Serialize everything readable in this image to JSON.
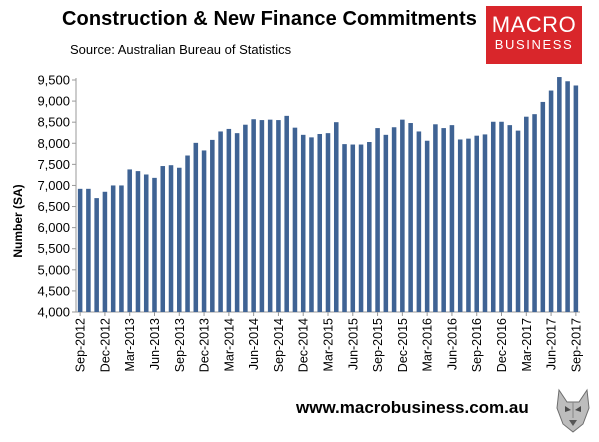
{
  "header": {
    "title": "Construction & New Finance Commitments",
    "subtitle": "Source: Australian Bureau of Statistics"
  },
  "logo": {
    "line1": "MACRO",
    "line2": "BUSINESS"
  },
  "footer": {
    "url": "www.macrobusiness.com.au",
    "wolf_icon": "wolf-logo-icon"
  },
  "colors": {
    "bar": "#3f6394",
    "brand": "#d9262b"
  },
  "chart_data": {
    "type": "bar",
    "title": "Construction & New Finance Commitments",
    "xlabel": "",
    "ylabel": "Number (SA)",
    "ylim": [
      4000,
      9500
    ],
    "yticks": [
      4000,
      4500,
      5000,
      5500,
      6000,
      6500,
      7000,
      7500,
      8000,
      8500,
      9000,
      9500
    ],
    "ytick_labels": [
      "4,000",
      "4,500",
      "5,000",
      "5,500",
      "6,000",
      "6,500",
      "7,000",
      "7,500",
      "8,000",
      "8,500",
      "9,000",
      "9,500"
    ],
    "grid": false,
    "categories": [
      "Sep-2012",
      "Oct-2012",
      "Nov-2012",
      "Dec-2012",
      "Jan-2013",
      "Feb-2013",
      "Mar-2013",
      "Apr-2013",
      "May-2013",
      "Jun-2013",
      "Jul-2013",
      "Aug-2013",
      "Sep-2013",
      "Oct-2013",
      "Nov-2013",
      "Dec-2013",
      "Jan-2014",
      "Feb-2014",
      "Mar-2014",
      "Apr-2014",
      "May-2014",
      "Jun-2014",
      "Jul-2014",
      "Aug-2014",
      "Sep-2014",
      "Oct-2014",
      "Nov-2014",
      "Dec-2014",
      "Jan-2015",
      "Feb-2015",
      "Mar-2015",
      "Apr-2015",
      "May-2015",
      "Jun-2015",
      "Jul-2015",
      "Aug-2015",
      "Sep-2015",
      "Oct-2015",
      "Nov-2015",
      "Dec-2015",
      "Jan-2016",
      "Feb-2016",
      "Mar-2016",
      "Apr-2016",
      "May-2016",
      "Jun-2016",
      "Jul-2016",
      "Aug-2016",
      "Sep-2016",
      "Oct-2016",
      "Nov-2016",
      "Dec-2016",
      "Jan-2017",
      "Feb-2017",
      "Mar-2017",
      "Apr-2017",
      "May-2017",
      "Jun-2017",
      "Jul-2017",
      "Aug-2017",
      "Sep-2017"
    ],
    "tick_labels": [
      "Sep-2012",
      "Dec-2012",
      "Mar-2013",
      "Jun-2013",
      "Sep-2013",
      "Dec-2013",
      "Mar-2014",
      "Jun-2014",
      "Sep-2014",
      "Dec-2014",
      "Mar-2015",
      "Jun-2015",
      "Sep-2015",
      "Dec-2015",
      "Mar-2016",
      "Jun-2016",
      "Sep-2016",
      "Dec-2016",
      "Mar-2017",
      "Jun-2017",
      "Sep-2017"
    ],
    "values": [
      6920,
      6920,
      6700,
      6850,
      7000,
      7000,
      7380,
      7340,
      7260,
      7180,
      7460,
      7480,
      7420,
      7710,
      8010,
      7830,
      8080,
      8280,
      8340,
      8240,
      8440,
      8570,
      8550,
      8560,
      8550,
      8650,
      8370,
      8200,
      8140,
      8220,
      8240,
      8500,
      7980,
      7970,
      7970,
      8030,
      8360,
      8200,
      8380,
      8560,
      8480,
      8280,
      8060,
      8450,
      8360,
      8430,
      8090,
      8110,
      8180,
      8210,
      8510,
      8510,
      8430,
      8300,
      8630,
      8690,
      8980,
      9250,
      9570,
      9470,
      9370
    ]
  }
}
